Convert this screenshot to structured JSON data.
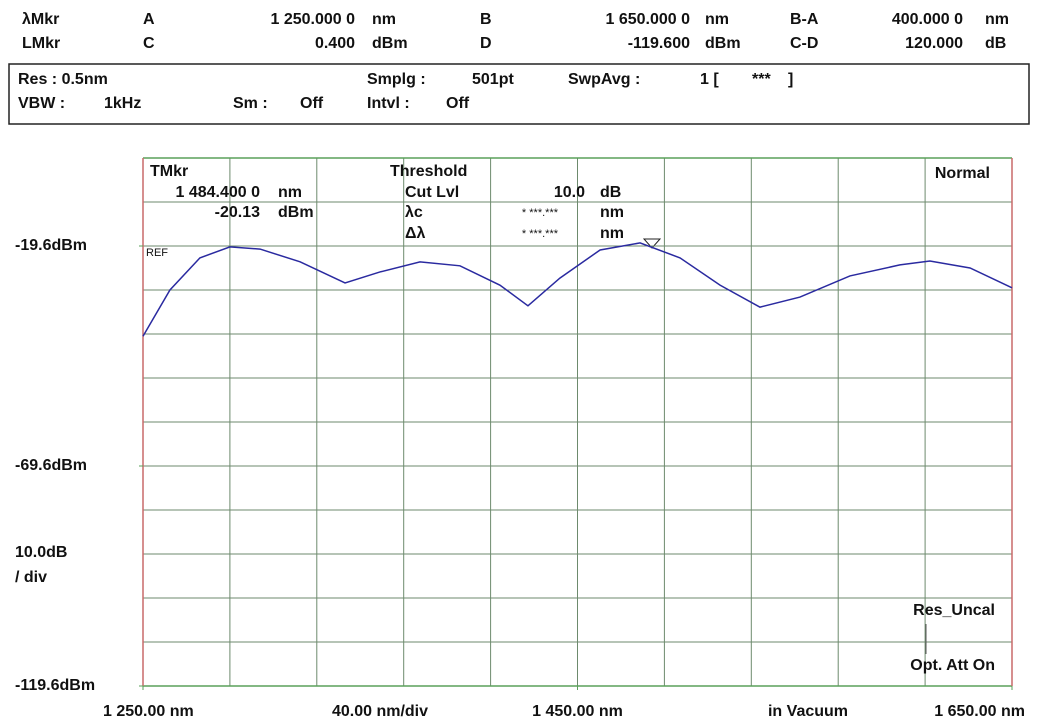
{
  "header": {
    "row1": [
      "λMkr",
      "A",
      "1 250.000 0",
      "nm",
      "B",
      "1 650.000 0",
      "nm",
      "B-A",
      "400.000 0",
      "nm"
    ],
    "row2": [
      "LMkr",
      "C",
      "0.400",
      "dBm",
      "D",
      "-119.600",
      "dBm",
      "C-D",
      "120.000",
      "dB"
    ]
  },
  "settings": {
    "row1": [
      "Res :  0.5nm",
      "Smplg :",
      "501pt",
      "SwpAvg :",
      "1  [",
      "***",
      "]"
    ],
    "row2": [
      "VBW :",
      "1kHz",
      "Sm :",
      "Off",
      "Intvl :",
      "Off"
    ]
  },
  "overlay": {
    "tmkr": [
      "TMkr",
      "1 484.400 0",
      "nm",
      "-20.13",
      "dBm"
    ],
    "threshold": [
      "Threshold",
      "Cut Lvl",
      "10.0",
      "dB",
      "λc",
      "* ***.***",
      "nm",
      "Δλ",
      "* ***.***",
      "nm"
    ],
    "mode": "Normal",
    "ref": "REF",
    "scale": [
      "10.0dB",
      "/ div"
    ],
    "status": [
      "Res_Uncal",
      "Opt. Att On"
    ],
    "span": "40.00 nm/div",
    "medium": "in Vacuum"
  },
  "chart_data": {
    "type": "line",
    "x": [
      1250,
      1262.4,
      1276.2,
      1290,
      1303.9,
      1322.3,
      1343,
      1359.1,
      1377.5,
      1395.9,
      1414.3,
      1427.2,
      1441.9,
      1460.4,
      1478.8,
      1497.2,
      1515.6,
      1534,
      1552.4,
      1575.4,
      1598.4,
      1612.2,
      1630.7,
      1650
    ],
    "values": [
      -40.1,
      -29.6,
      -22.3,
      -19.8,
      -20.3,
      -23.2,
      -28.0,
      -25.5,
      -23.2,
      -24.1,
      -28.5,
      -33.2,
      -26.9,
      -20.5,
      -18.9,
      -22.3,
      -28.5,
      -33.5,
      -31.2,
      -26.4,
      -23.9,
      -23.0,
      -24.6,
      -29.1
    ],
    "color": "#2a2aa0",
    "xlim": [
      1250,
      1650
    ],
    "xticks": [
      {
        "value": 1250,
        "label": "1 250.00 nm"
      },
      {
        "value": 1450,
        "label": "1 450.00 nm"
      },
      {
        "value": 1650,
        "label": "1 650.00 nm"
      }
    ],
    "ylim": [
      -119.6,
      0.4
    ],
    "yticks": [
      {
        "value": -19.6,
        "label": "-19.6dBm"
      },
      {
        "value": -69.6,
        "label": "-69.6dBm"
      },
      {
        "value": -119.6,
        "label": "-119.6dBm"
      }
    ],
    "grid": true
  }
}
